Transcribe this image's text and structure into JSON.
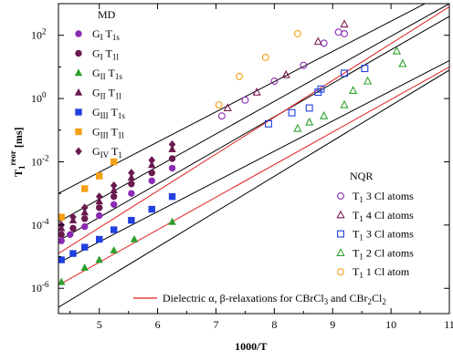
{
  "chart_data": {
    "type": "scatter",
    "xlabel": "1000/T",
    "ylabel_main": "T",
    "ylabel_sub": "1",
    "ylabel_sup": "reor",
    "ylabel_unit": "[ms]",
    "x_scale": "linear",
    "y_scale": "log",
    "xlim": [
      4.3,
      11.0
    ],
    "ylim_log10": [
      -6.8,
      3.0
    ],
    "x_ticks": [
      5,
      6,
      7,
      8,
      9,
      10,
      11
    ],
    "x_tick_labels": [
      "5",
      "6",
      "7",
      "8",
      "9",
      "10",
      "11"
    ],
    "y_ticks_log10": [
      2,
      0,
      -2,
      -4,
      -6
    ],
    "y_tick_labels": [
      {
        "base": "10",
        "exp": "2"
      },
      {
        "base": "10",
        "exp": "0"
      },
      {
        "base": "10",
        "exp": "-2"
      },
      {
        "base": "10",
        "exp": "-4"
      },
      {
        "base": "10",
        "exp": "-6"
      }
    ],
    "grid": false,
    "legend_md": {
      "title": "MD",
      "placement": "top-left",
      "entries": [
        {
          "G": "G",
          "gsub": "I",
          "T": "T",
          "tsub": "1s",
          "marker": "circle",
          "filled": true,
          "color": "#8b2ab5"
        },
        {
          "G": "G",
          "gsub": "I",
          "T": "T",
          "tsub": "1l",
          "marker": "circle",
          "filled": true,
          "color": "#6a1a4e"
        },
        {
          "G": "G",
          "gsub": "II",
          "T": "T",
          "tsub": "1s",
          "marker": "triangle",
          "filled": true,
          "color": "#2ca02c"
        },
        {
          "G": "G",
          "gsub": "II",
          "T": "T",
          "tsub": "1l",
          "marker": "triangle",
          "filled": true,
          "color": "#6a1a4e"
        },
        {
          "G": "G",
          "gsub": "III",
          "T": "T",
          "tsub": "1s",
          "marker": "square",
          "filled": true,
          "color": "#1f3fe0"
        },
        {
          "G": "G",
          "gsub": "III",
          "T": "T",
          "tsub": "1l",
          "marker": "square",
          "filled": true,
          "color": "#f5a013"
        },
        {
          "G": "G",
          "gsub": "IV",
          "T": "T",
          "tsub": "1",
          "marker": "diamond",
          "filled": true,
          "color": "#6a1a4e"
        }
      ]
    },
    "legend_nqr": {
      "title": "NQR",
      "placement": "right",
      "entries": [
        {
          "T": "T",
          "tsub": "1",
          "text": "3 Cl atoms",
          "marker": "circle",
          "filled": false,
          "color": "#8b2ab5"
        },
        {
          "T": "T",
          "tsub": "1",
          "text": "4 Cl atoms",
          "marker": "triangle",
          "filled": false,
          "color": "#7a1a4e"
        },
        {
          "T": "T",
          "tsub": "1",
          "text": "3 Cl atoms",
          "marker": "square",
          "filled": false,
          "color": "#1f3fe0"
        },
        {
          "T": "T",
          "tsub": "1",
          "text": "2 Cl atoms",
          "marker": "triangle",
          "filled": false,
          "color": "#2ca02c"
        },
        {
          "T": "T",
          "tsub": "1",
          "text": "1 Cl atom",
          "marker": "circle",
          "filled": false,
          "color": "#f5a013"
        }
      ]
    },
    "legend_line": {
      "text_pre": "Dielectric α, β-relaxations for CBrCl",
      "sub1": "3",
      "text_mid": " and CBr",
      "sub2": "2",
      "text_post": "Cl",
      "sub3": "2",
      "color": "#e02020"
    },
    "lines": [
      {
        "color": "#000000",
        "x": [
          4.3,
          11.0
        ],
        "y_log10": [
          -3.0,
          3.4
        ]
      },
      {
        "color": "#000000",
        "x": [
          4.3,
          11.0
        ],
        "y_log10": [
          -3.9,
          3.0
        ]
      },
      {
        "color": "#000000",
        "x": [
          4.3,
          11.0
        ],
        "y_log10": [
          -4.5,
          2.6
        ]
      },
      {
        "color": "#000000",
        "x": [
          4.3,
          11.0
        ],
        "y_log10": [
          -5.2,
          1.2
        ]
      },
      {
        "color": "#000000",
        "x": [
          4.3,
          11.0
        ],
        "y_log10": [
          -6.6,
          0.9
        ]
      },
      {
        "color": "#e02020",
        "x": [
          4.3,
          11.0
        ],
        "y_log10": [
          -4.9,
          2.9
        ]
      },
      {
        "color": "#e02020",
        "x": [
          4.3,
          11.0
        ],
        "y_log10": [
          -5.9,
          1.0
        ]
      }
    ],
    "series": [
      {
        "marker": "circle",
        "filled": true,
        "color": "#8b2ab5",
        "points": [
          [
            4.35,
            -4.5
          ],
          [
            4.5,
            -4.3
          ],
          [
            4.75,
            -4.05
          ],
          [
            5.0,
            -3.7
          ],
          [
            5.25,
            -3.35
          ],
          [
            5.55,
            -3.0
          ],
          [
            5.9,
            -2.6
          ],
          [
            6.25,
            -2.2
          ]
        ]
      },
      {
        "marker": "circle",
        "filled": true,
        "color": "#6a1a4e",
        "points": [
          [
            4.35,
            -4.3
          ],
          [
            4.55,
            -4.1
          ],
          [
            4.75,
            -3.8
          ],
          [
            5.0,
            -3.45
          ],
          [
            5.25,
            -3.1
          ],
          [
            5.55,
            -2.7
          ],
          [
            5.9,
            -2.35
          ],
          [
            6.25,
            -1.9
          ]
        ]
      },
      {
        "marker": "triangle",
        "filled": true,
        "color": "#2ca02c",
        "points": [
          [
            4.35,
            -5.8
          ],
          [
            4.75,
            -5.35
          ],
          [
            5.0,
            -5.1
          ],
          [
            5.25,
            -4.8
          ],
          [
            5.6,
            -4.45
          ],
          [
            6.25,
            -3.9
          ]
        ]
      },
      {
        "marker": "triangle",
        "filled": true,
        "color": "#6a1a4e",
        "points": [
          [
            4.35,
            -4.1
          ],
          [
            4.55,
            -3.85
          ],
          [
            4.75,
            -3.6
          ],
          [
            5.0,
            -3.25
          ],
          [
            5.25,
            -2.9
          ],
          [
            5.55,
            -2.5
          ],
          [
            5.9,
            -2.1
          ],
          [
            6.25,
            -1.6
          ]
        ]
      },
      {
        "marker": "square",
        "filled": true,
        "color": "#1f3fe0",
        "points": [
          [
            4.35,
            -5.1
          ],
          [
            4.55,
            -4.9
          ],
          [
            4.75,
            -4.7
          ],
          [
            5.0,
            -4.45
          ],
          [
            5.25,
            -4.15
          ],
          [
            5.55,
            -3.85
          ],
          [
            5.9,
            -3.5
          ],
          [
            6.25,
            -3.1
          ]
        ]
      },
      {
        "marker": "square",
        "filled": true,
        "color": "#f5a013",
        "points": [
          [
            4.35,
            -3.75
          ],
          [
            4.75,
            -2.85
          ],
          [
            5.0,
            -2.45
          ],
          [
            5.25,
            -2.0
          ]
        ]
      },
      {
        "marker": "diamond",
        "filled": true,
        "color": "#6a1a4e",
        "points": [
          [
            4.35,
            -4.0
          ],
          [
            4.55,
            -3.75
          ],
          [
            4.75,
            -3.45
          ],
          [
            5.0,
            -3.1
          ],
          [
            5.25,
            -2.75
          ],
          [
            5.55,
            -2.35
          ],
          [
            5.9,
            -1.95
          ],
          [
            6.25,
            -1.45
          ]
        ]
      },
      {
        "marker": "circle",
        "filled": false,
        "color": "#8b2ab5",
        "points": [
          [
            7.1,
            -0.55
          ],
          [
            7.5,
            -0.05
          ],
          [
            8.0,
            0.55
          ],
          [
            8.5,
            1.05
          ],
          [
            9.1,
            2.1
          ],
          [
            9.2,
            2.05
          ],
          [
            8.85,
            1.75
          ]
        ]
      },
      {
        "marker": "triangle",
        "filled": false,
        "color": "#7a1a4e",
        "points": [
          [
            7.2,
            -0.3
          ],
          [
            7.7,
            0.2
          ],
          [
            8.2,
            0.75
          ],
          [
            8.75,
            1.8
          ],
          [
            9.2,
            2.35
          ]
        ]
      },
      {
        "marker": "square",
        "filled": false,
        "color": "#1f3fe0",
        "points": [
          [
            7.9,
            -0.8
          ],
          [
            8.3,
            -0.45
          ],
          [
            8.6,
            -0.3
          ],
          [
            8.75,
            0.2
          ],
          [
            8.8,
            0.3
          ],
          [
            9.2,
            0.8
          ],
          [
            9.55,
            0.95
          ]
        ]
      },
      {
        "marker": "triangle",
        "filled": false,
        "color": "#2ca02c",
        "points": [
          [
            8.4,
            -0.95
          ],
          [
            8.6,
            -0.75
          ],
          [
            8.85,
            -0.55
          ],
          [
            9.2,
            -0.2
          ],
          [
            9.35,
            0.25
          ],
          [
            9.6,
            0.55
          ],
          [
            10.1,
            1.5
          ],
          [
            10.2,
            1.1
          ]
        ]
      },
      {
        "marker": "circle",
        "filled": false,
        "color": "#f5a013",
        "points": [
          [
            7.05,
            -0.2
          ],
          [
            7.4,
            0.7
          ],
          [
            7.85,
            1.3
          ],
          [
            8.4,
            2.05
          ]
        ]
      }
    ]
  }
}
